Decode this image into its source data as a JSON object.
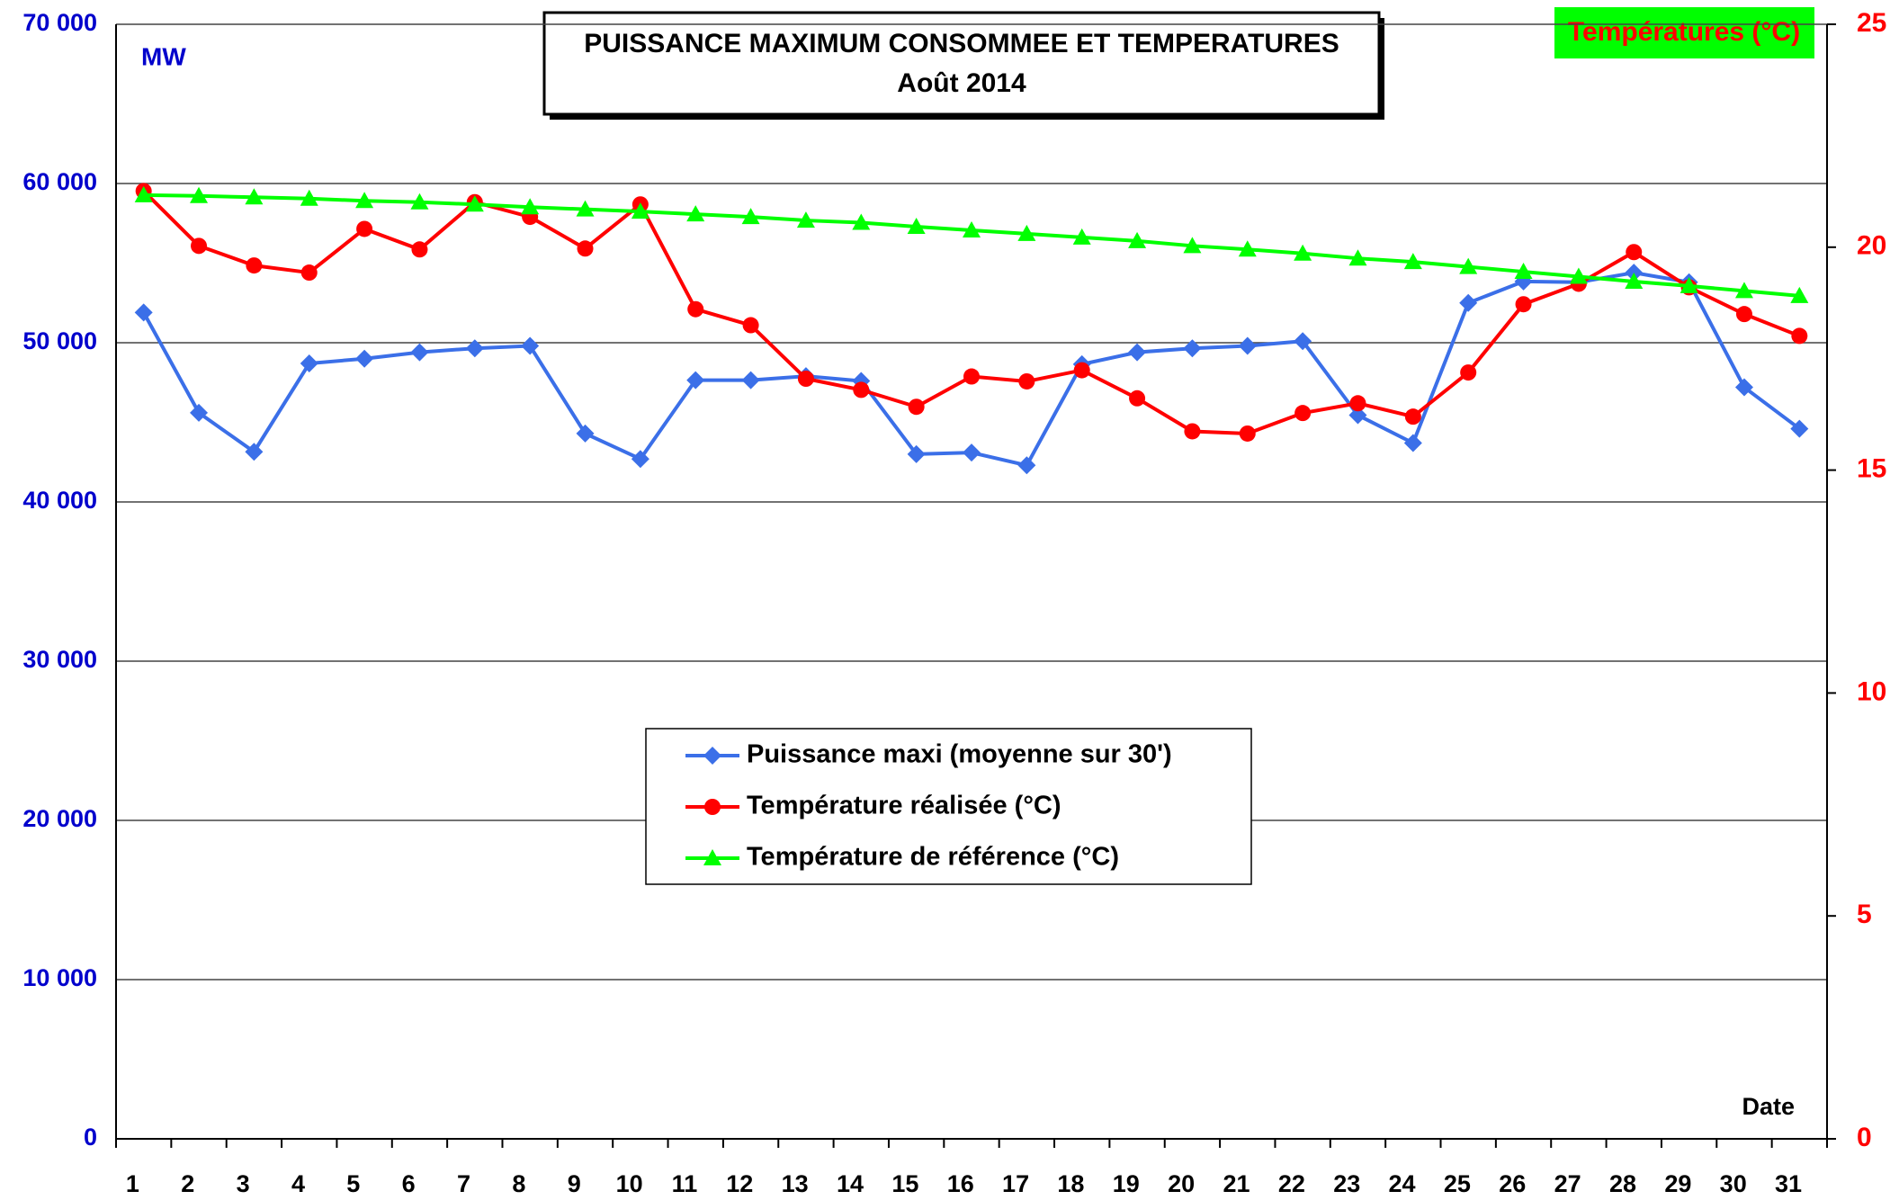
{
  "chart_data": {
    "type": "line",
    "title": "PUISSANCE  MAXIMUM CONSOMMEE ET TEMPERATURES",
    "subtitle": "Août 2014",
    "y_label": "MW",
    "y2_label": "Températures (°C)",
    "x_label": "Date",
    "categories": [
      "1",
      "2",
      "3",
      "4",
      "5",
      "6",
      "7",
      "8",
      "9",
      "10",
      "11",
      "12",
      "13",
      "14",
      "15",
      "16",
      "17",
      "18",
      "19",
      "20",
      "21",
      "22",
      "23",
      "24",
      "25",
      "26",
      "27",
      "28",
      "29",
      "30",
      "31"
    ],
    "series": [
      {
        "name": "Puissance maxi (moyenne sur 30')",
        "color": "#3b6fe8",
        "marker": "diamond",
        "values": [
          51900,
          45600,
          43150,
          48700,
          49000,
          49400,
          49650,
          49800,
          44300,
          42700,
          47650,
          47650,
          47900,
          47600,
          43000,
          43100,
          42300,
          48650,
          49400,
          49650,
          49800,
          50100,
          45450,
          43700,
          52500,
          53850,
          53800,
          54400,
          53800,
          47200,
          44600
        ]
      },
      {
        "name": "Température réalisée (°C)",
        "color": "#ff0000",
        "marker": "circle",
        "axis": "y2",
        "values": [
          21.26,
          20.03,
          19.59,
          19.43,
          20.41,
          19.95,
          21.01,
          20.68,
          19.97,
          20.96,
          18.61,
          18.25,
          17.05,
          16.8,
          16.42,
          17.1,
          16.99,
          17.24,
          16.61,
          15.87,
          15.82,
          16.28,
          16.5,
          16.2,
          17.19,
          18.72,
          19.18,
          19.89,
          19.1,
          18.5,
          18.01
        ]
      },
      {
        "name": "Température de référence (°C)",
        "color": "#00ff00",
        "marker": "triangle",
        "axis": "y2",
        "values": [
          21.17,
          21.15,
          21.12,
          21.09,
          21.04,
          21.01,
          20.96,
          20.9,
          20.85,
          20.8,
          20.74,
          20.68,
          20.6,
          20.55,
          20.46,
          20.38,
          20.3,
          20.22,
          20.14,
          20.03,
          19.95,
          19.86,
          19.75,
          19.67,
          19.56,
          19.45,
          19.34,
          19.23,
          19.13,
          19.02,
          18.91
        ]
      }
    ],
    "ylim": [
      0,
      70000
    ],
    "yticks": [
      0,
      {
        "value": 10000,
        "label": "10 000"
      },
      {
        "value": 20000,
        "label": "20 000"
      },
      {
        "value": 30000,
        "label": "30 000"
      },
      {
        "value": 40000,
        "label": "40 000"
      },
      {
        "value": 50000,
        "label": "50 000"
      },
      {
        "value": 60000,
        "label": "60 000"
      },
      {
        "value": 70000,
        "label": "70 000"
      }
    ],
    "y2lim": [
      0,
      25
    ],
    "y2ticks": [
      0,
      5,
      10,
      15,
      20,
      25
    ],
    "grid": true,
    "y_tick_color": "#0000cc",
    "y2_tick_color": "#ff0000",
    "y2_label_background": "#00ff00",
    "legend": "center"
  }
}
